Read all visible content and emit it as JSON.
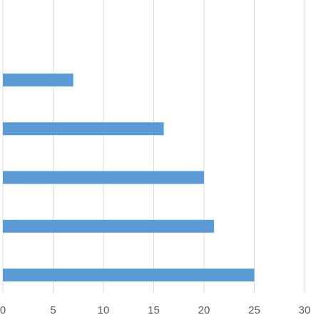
{
  "chart_data": {
    "type": "bar",
    "orientation": "horizontal",
    "categories": [
      null,
      null,
      null,
      null,
      null
    ],
    "values": [
      7,
      16,
      20,
      21,
      25
    ],
    "color": "#5b9bd5",
    "xlim": [
      0,
      30
    ],
    "xticks": [
      0,
      5,
      10,
      15,
      20,
      25,
      30
    ],
    "grid": true
  }
}
